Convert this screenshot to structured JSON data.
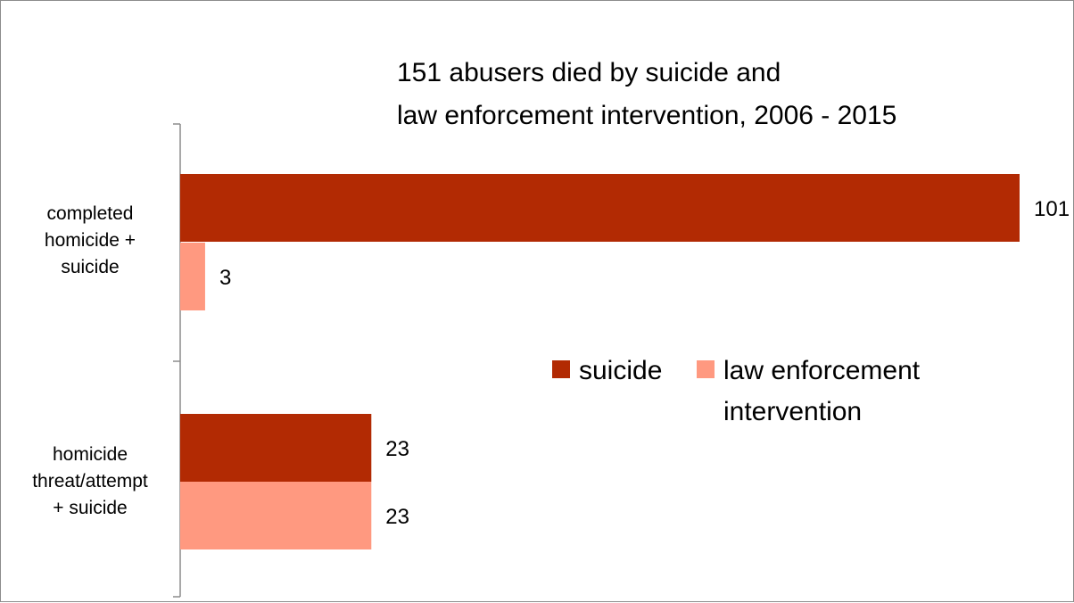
{
  "chart_data": {
    "type": "bar",
    "orientation": "horizontal",
    "title_lines": [
      "151 abusers died by suicide and",
      "law enforcement intervention, 2006 - 2015"
    ],
    "categories": [
      [
        "completed",
        "homicide +",
        "suicide"
      ],
      [
        "homicide",
        "threat/attempt",
        "+ suicide"
      ]
    ],
    "series": [
      {
        "name": "suicide",
        "color": "#B22A03",
        "values": [
          101,
          23
        ]
      },
      {
        "name": "law enforcement intervention",
        "color": "#FF9980",
        "values": [
          3,
          23
        ]
      }
    ],
    "legend_lines": [
      [
        "suicide"
      ],
      [
        "law enforcement",
        "intervention"
      ]
    ],
    "legend_position": "right",
    "xlim": [
      0,
      101
    ],
    "grid": false,
    "axis_color": "#8c8c8c"
  }
}
